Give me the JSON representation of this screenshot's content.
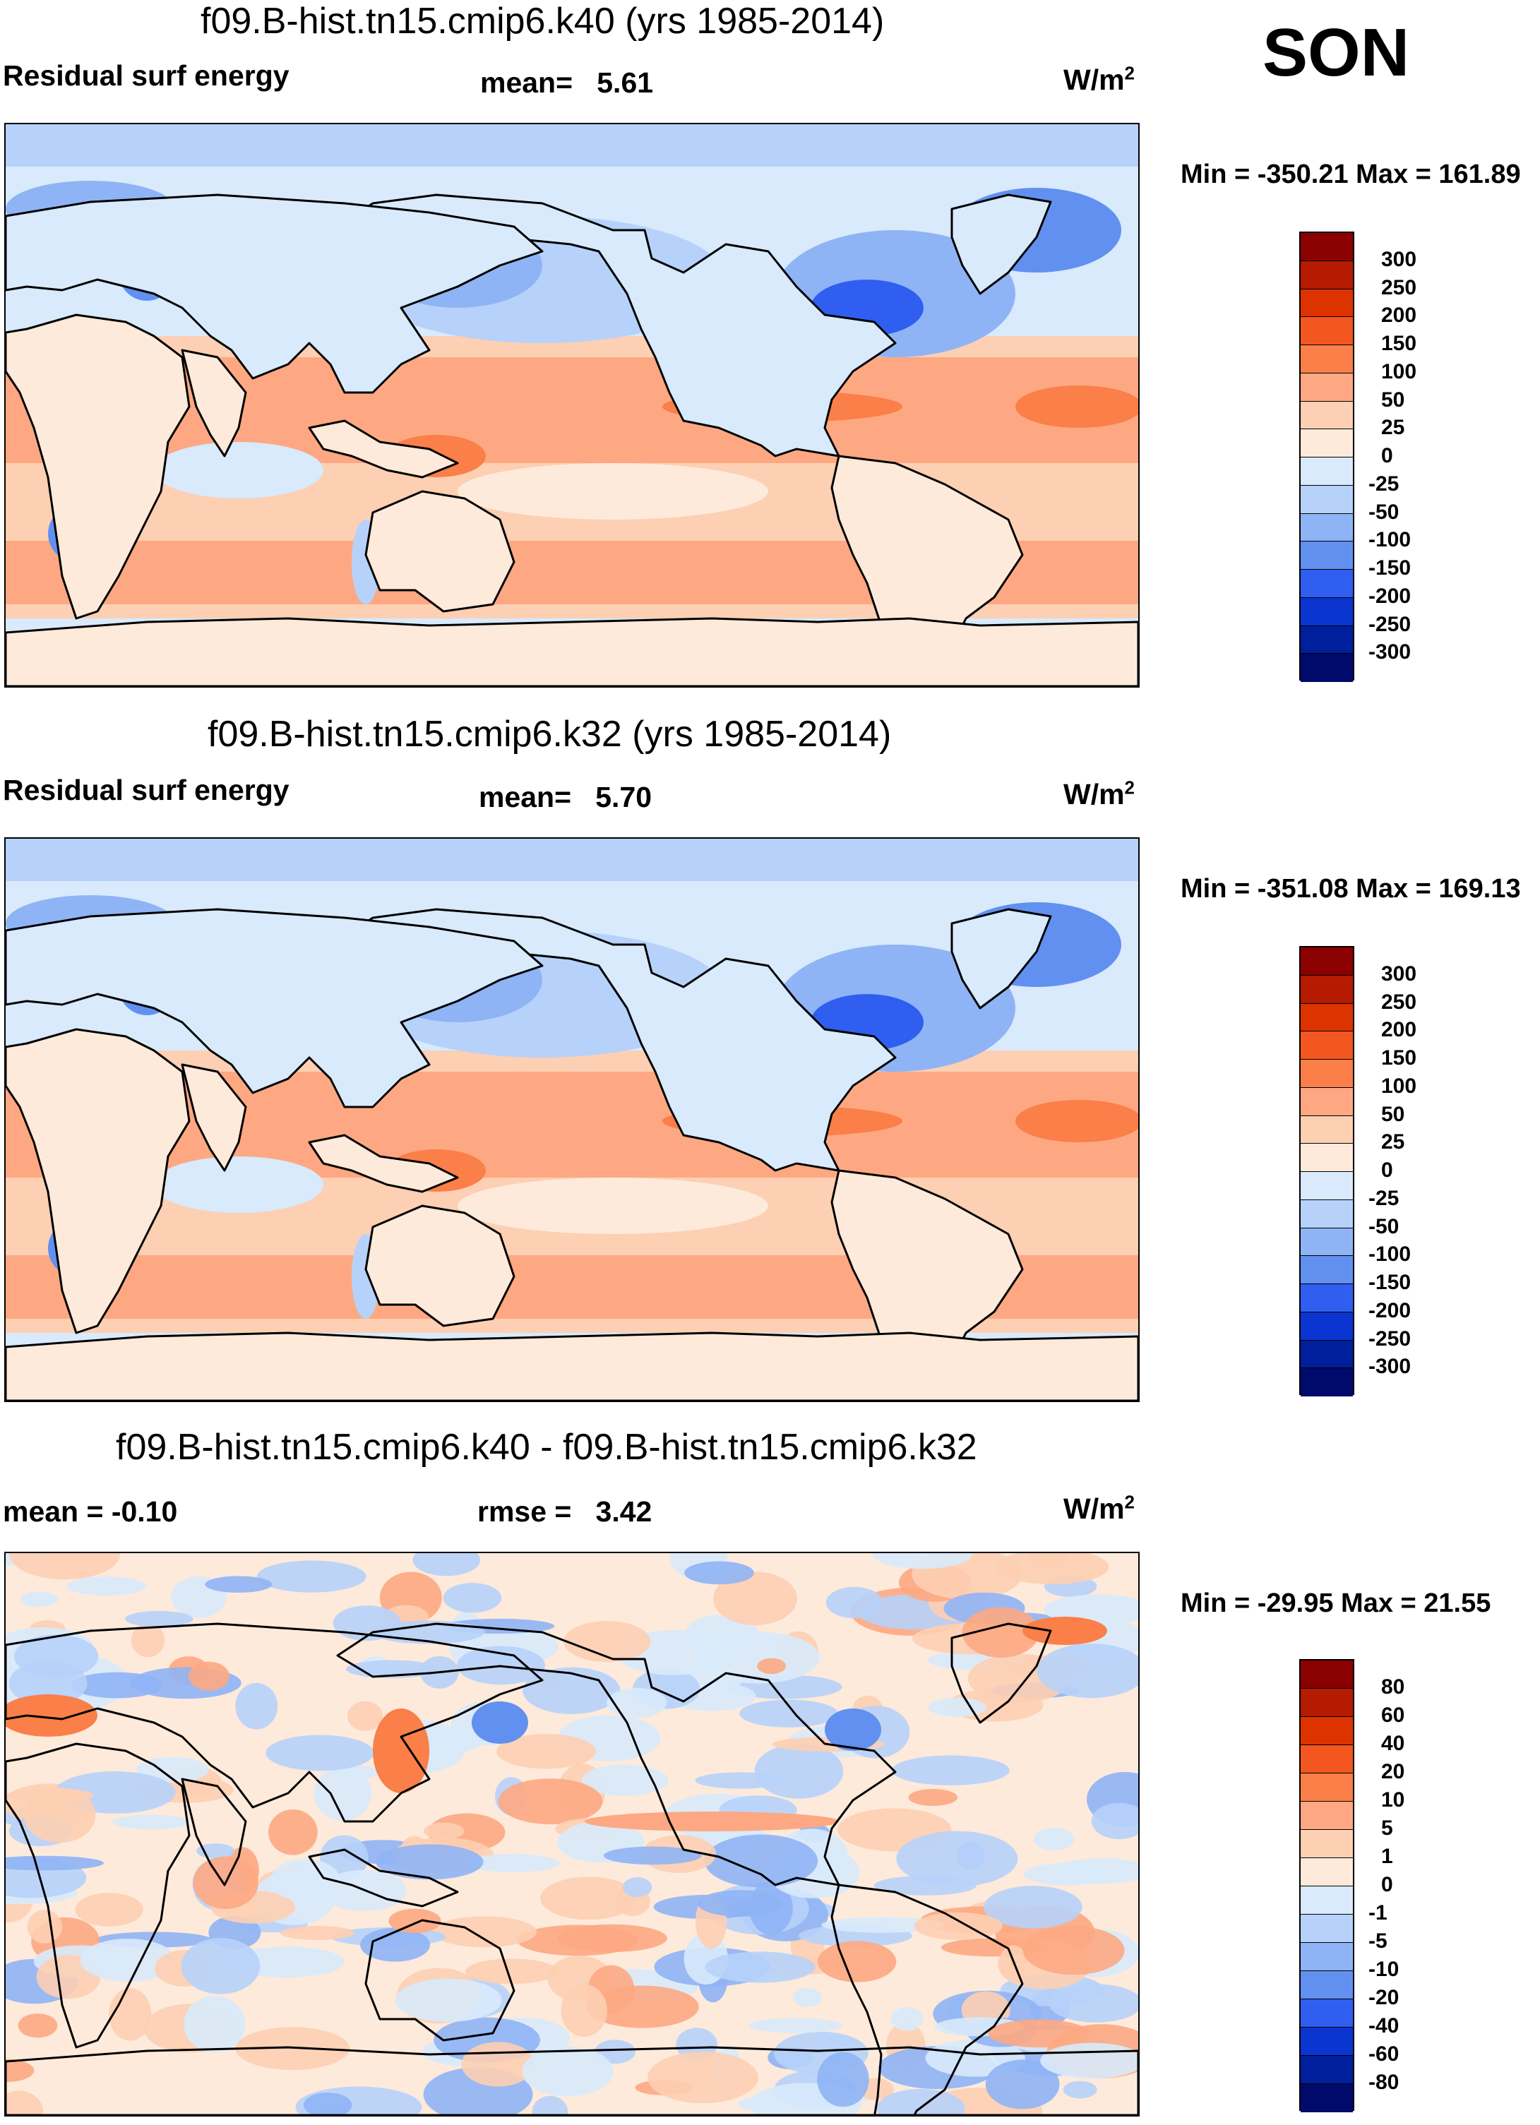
{
  "season": "SON",
  "units_base": "W/m",
  "units_sup": "2",
  "panels": [
    {
      "title": "f09.B-hist.tn15.cmip6.k40 (yrs 1985-2014)",
      "left_label": "Residual surf energy",
      "center_label": "mean=",
      "center_value": "5.61",
      "minmax": "Min = -350.21 Max = 161.89",
      "legend": [
        "300",
        "250",
        "200",
        "150",
        "100",
        "50",
        "25",
        "0",
        "-25",
        "-50",
        "-100",
        "-150",
        "-200",
        "-250",
        "-300"
      ]
    },
    {
      "title": "f09.B-hist.tn15.cmip6.k32 (yrs 1985-2014)",
      "left_label": "Residual surf energy",
      "center_label": "mean=",
      "center_value": "5.70",
      "minmax": "Min = -351.08 Max = 169.13",
      "legend": [
        "300",
        "250",
        "200",
        "150",
        "100",
        "50",
        "25",
        "0",
        "-25",
        "-50",
        "-100",
        "-150",
        "-200",
        "-250",
        "-300"
      ]
    },
    {
      "title": "f09.B-hist.tn15.cmip6.k40 - f09.B-hist.tn15.cmip6.k32",
      "left_label": "mean =  -0.10",
      "center_label": "rmse =",
      "center_value": "3.42",
      "minmax": "Min = -29.95 Max =  21.55",
      "legend": [
        "80",
        "60",
        "40",
        "20",
        "10",
        "5",
        "1",
        "0",
        "-1",
        "-5",
        "-10",
        "-20",
        "-40",
        "-60",
        "-80"
      ]
    }
  ],
  "colors": {
    "palette": [
      "#8b0000",
      "#b51b00",
      "#dd3300",
      "#f4561f",
      "#fa7f48",
      "#fda882",
      "#fdcfb3",
      "#fdeadb",
      "#d8eafb",
      "#b7d2fa",
      "#8fb4f5",
      "#6290f0",
      "#2f5ef0",
      "#0b35d0",
      "#001f9c",
      "#000a6b"
    ],
    "land": "#d8eafb",
    "coast": "#000000"
  }
}
